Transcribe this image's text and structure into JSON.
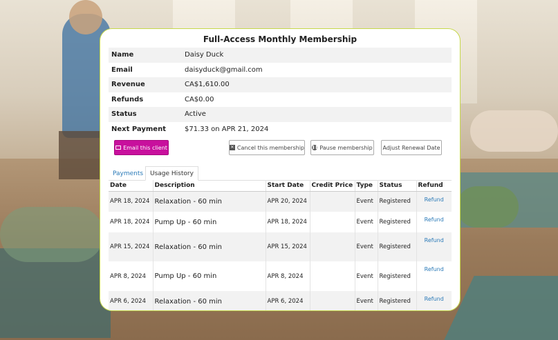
{
  "card": {
    "title": "Full-Access Monthly Membership",
    "details": [
      {
        "label": "Name",
        "value": "Daisy Duck"
      },
      {
        "label": "Email",
        "value": "daisyduck@gmail.com"
      },
      {
        "label": "Revenue",
        "value": "CA$1,610.00"
      },
      {
        "label": "Refunds",
        "value": "CA$0.00"
      },
      {
        "label": "Status",
        "value": "Active"
      },
      {
        "label": "Next Payment",
        "value": "$71.33 on APR 21, 2024"
      }
    ]
  },
  "actions": {
    "email": "Email this client",
    "cancel": "Cancel this membership",
    "pause": "Pause membership",
    "renew": "Adjust Renewal Date"
  },
  "tabs": [
    {
      "label": "Payments",
      "active": false
    },
    {
      "label": "Usage History",
      "active": true
    }
  ],
  "table": {
    "headers": [
      "Date",
      "Description",
      "Start Date",
      "Credit Price",
      "Type",
      "Status",
      "Refund"
    ],
    "rows": [
      {
        "date": "APR 18, 2024",
        "description": "Relaxation - 60 min",
        "start": "APR 20, 2024",
        "credit": "",
        "type": "Event",
        "status": "Registered",
        "refund": "Refund"
      },
      {
        "date": "APR 18, 2024",
        "description": "Pump Up - 60 min",
        "start": "APR 18, 2024",
        "credit": "",
        "type": "Event",
        "status": "Registered",
        "refund": "Refund"
      },
      {
        "date": "APR 15, 2024",
        "description": "Relaxation - 60 min",
        "start": "APR 15, 2024",
        "credit": "",
        "type": "Event",
        "status": "Registered",
        "refund": "Refund"
      },
      {
        "date": "APR 8, 2024",
        "description": "Pump Up - 60 min",
        "start": "APR 8, 2024",
        "credit": "",
        "type": "Event",
        "status": "Registered",
        "refund": "Refund"
      },
      {
        "date": "APR 6, 2024",
        "description": "Relaxation - 60 min",
        "start": "APR 6, 2024",
        "credit": "",
        "type": "Event",
        "status": "Registered",
        "refund": "Refund"
      }
    ]
  },
  "colors": {
    "accent": "#c8109d",
    "link": "#2a7ab8",
    "card_border": "#c6d84a"
  }
}
